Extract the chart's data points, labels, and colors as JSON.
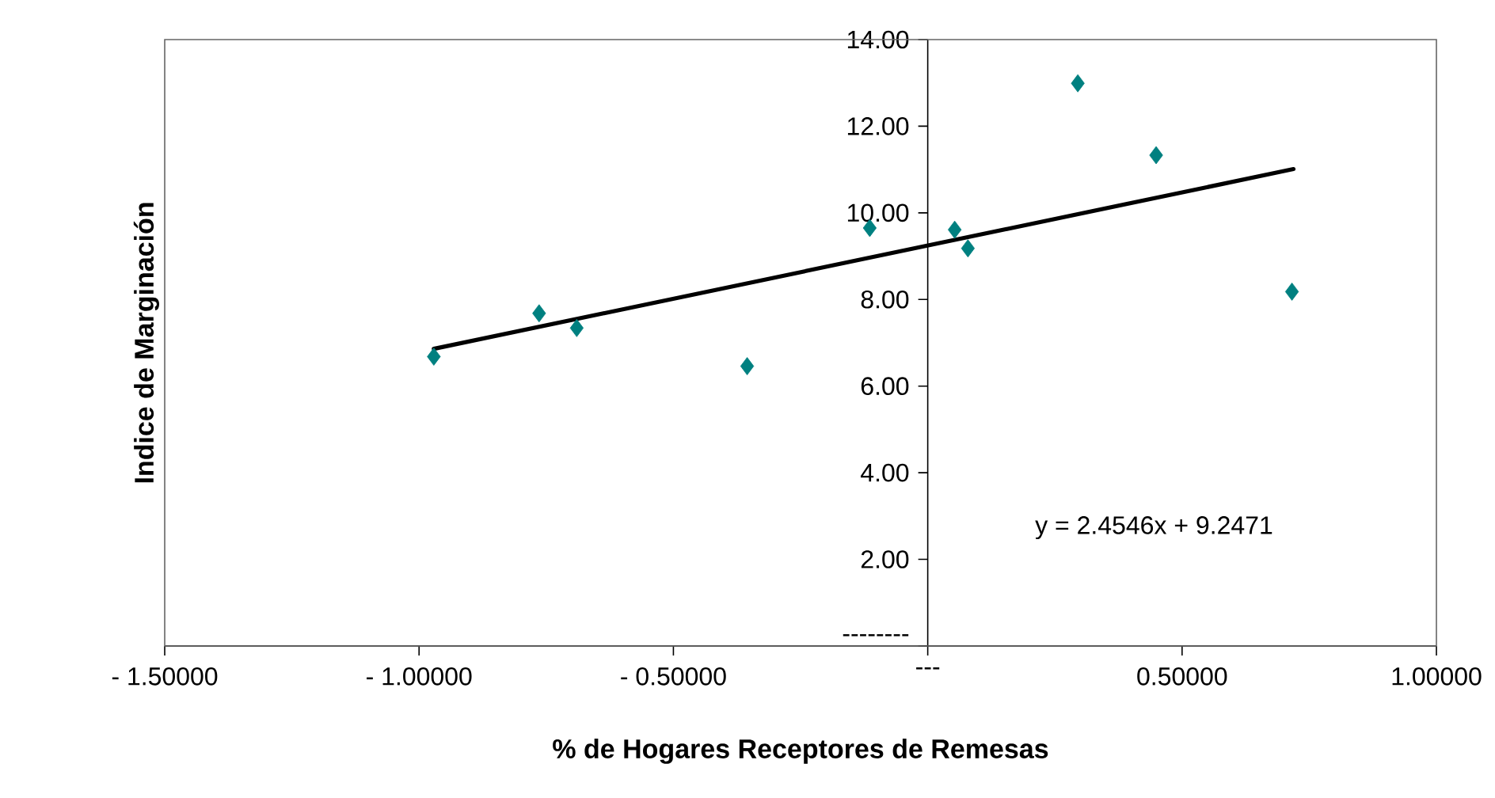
{
  "chart_data": {
    "type": "scatter",
    "xlabel": "% de Hogares Receptores de Remesas",
    "ylabel": "Indice de Marginación",
    "xlim": [
      -1.5,
      1.0
    ],
    "ylim": [
      0,
      14
    ],
    "xticks": [
      {
        "value": -1.5,
        "label": "- 1.50000"
      },
      {
        "value": -1.0,
        "label": "- 1.00000"
      },
      {
        "value": -0.5,
        "label": "- 0.50000"
      },
      {
        "value": 0,
        "label": "---"
      },
      {
        "value": 0.5,
        "label": "0.50000"
      },
      {
        "value": 1.0,
        "label": "1.00000"
      }
    ],
    "yticks": [
      {
        "value": 0,
        "label": "--------"
      },
      {
        "value": 2,
        "label": "2.00"
      },
      {
        "value": 4,
        "label": "4.00"
      },
      {
        "value": 6,
        "label": "6.00"
      },
      {
        "value": 8,
        "label": "8.00"
      },
      {
        "value": 10,
        "label": "10.00"
      },
      {
        "value": 12,
        "label": "12.00"
      },
      {
        "value": 14,
        "label": "14.00"
      }
    ],
    "series": [
      {
        "type": "scatter",
        "color": "#008080",
        "marker": "diamond",
        "x": [
          -0.971,
          -0.764,
          -0.69,
          -0.355,
          -0.114,
          0.053,
          0.079,
          0.295,
          0.449,
          0.716
        ],
        "values": [
          6.68,
          7.68,
          7.34,
          6.46,
          9.65,
          9.61,
          9.18,
          12.99,
          11.33,
          8.18
        ]
      },
      {
        "type": "line",
        "color": "#000000",
        "marker": "none",
        "line_style": "solid",
        "x": [
          -0.971,
          0.719
        ],
        "values": [
          6.86,
          11.01
        ]
      }
    ],
    "annotations": [
      "y = 2.4546x + 9.2471"
    ]
  }
}
